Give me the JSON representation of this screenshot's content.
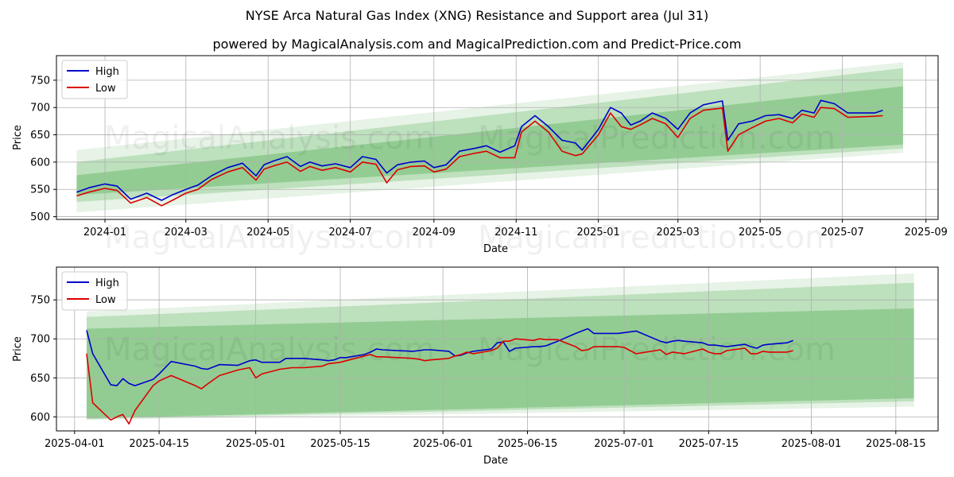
{
  "figure": {
    "title": "NYSE Arca Natural Gas Index (XNG) Resistance and Support area (Jul 31)",
    "subtitle": "powered by MagicalAnalysis.com and MagicalPrediction.com and Predict-Price.com",
    "watermarks": [
      "MagicalAnalysis.com",
      "MagicalPrediction.com"
    ]
  },
  "colors": {
    "high": "#0000cc",
    "low": "#dd0000",
    "band": "#2e9e2e",
    "grid": "#b0b0b0"
  },
  "chart_data": [
    {
      "type": "line",
      "xlabel": "Date",
      "ylabel": "Price",
      "legend": "top-left",
      "grid": true,
      "xlim": [
        "2023-11-26",
        "2025-09-10"
      ],
      "ylim": [
        495,
        795
      ],
      "xticks": [
        "2024-01",
        "2024-03",
        "2024-05",
        "2024-07",
        "2024-09",
        "2024-11",
        "2025-01",
        "2025-03",
        "2025-05",
        "2025-07",
        "2025-09"
      ],
      "xtick_dates": [
        "2024-01-01",
        "2024-03-01",
        "2024-05-01",
        "2024-07-01",
        "2024-09-01",
        "2024-11-01",
        "2025-01-01",
        "2025-03-01",
        "2025-05-01",
        "2025-07-01",
        "2025-09-01"
      ],
      "yticks": [
        500,
        550,
        600,
        650,
        700,
        750
      ],
      "bands": [
        {
          "x": [
            "2023-12-11",
            "2025-08-15"
          ],
          "upper": [
            622,
            783
          ],
          "lower": [
            508,
            617
          ]
        },
        {
          "x": [
            "2023-12-11",
            "2025-08-15"
          ],
          "upper": [
            600,
            772
          ],
          "lower": [
            527,
            625
          ]
        },
        {
          "x": [
            "2023-12-11",
            "2025-08-15"
          ],
          "upper": [
            576,
            739
          ],
          "lower": [
            540,
            632
          ]
        }
      ],
      "series": [
        {
          "name": "High",
          "color": "#0000cc",
          "x": [
            "2023-12-11",
            "2023-12-20",
            "2024-01-01",
            "2024-01-10",
            "2024-01-20",
            "2024-02-01",
            "2024-02-12",
            "2024-02-20",
            "2024-03-01",
            "2024-03-10",
            "2024-03-20",
            "2024-04-01",
            "2024-04-12",
            "2024-04-22",
            "2024-04-28",
            "2024-05-05",
            "2024-05-15",
            "2024-05-25",
            "2024-06-01",
            "2024-06-10",
            "2024-06-20",
            "2024-07-01",
            "2024-07-10",
            "2024-07-20",
            "2024-07-28",
            "2024-08-05",
            "2024-08-15",
            "2024-08-25",
            "2024-09-01",
            "2024-09-10",
            "2024-09-20",
            "2024-10-01",
            "2024-10-10",
            "2024-10-20",
            "2024-10-31",
            "2024-11-05",
            "2024-11-15",
            "2024-11-25",
            "2024-12-05",
            "2024-12-15",
            "2024-12-20",
            "2025-01-01",
            "2025-01-10",
            "2025-01-18",
            "2025-01-25",
            "2025-02-01",
            "2025-02-10",
            "2025-02-20",
            "2025-03-01",
            "2025-03-10",
            "2025-03-20",
            "2025-04-03",
            "2025-04-07",
            "2025-04-15",
            "2025-04-25",
            "2025-05-05",
            "2025-05-15",
            "2025-05-25",
            "2025-06-01",
            "2025-06-10",
            "2025-06-15",
            "2025-06-25",
            "2025-07-05",
            "2025-07-15",
            "2025-07-25",
            "2025-07-31"
          ],
          "values": [
            545,
            553,
            560,
            556,
            532,
            543,
            530,
            540,
            550,
            558,
            575,
            590,
            598,
            575,
            595,
            602,
            610,
            592,
            600,
            593,
            597,
            590,
            610,
            605,
            580,
            595,
            600,
            602,
            590,
            595,
            620,
            625,
            630,
            618,
            630,
            665,
            685,
            665,
            640,
            635,
            622,
            660,
            700,
            690,
            668,
            675,
            690,
            680,
            660,
            690,
            705,
            712,
            640,
            670,
            675,
            685,
            687,
            680,
            695,
            690,
            713,
            707,
            690,
            690,
            690,
            695
          ]
        },
        {
          "name": "Low",
          "color": "#dd0000",
          "x": [
            "2023-12-11",
            "2023-12-20",
            "2024-01-01",
            "2024-01-10",
            "2024-01-20",
            "2024-02-01",
            "2024-02-12",
            "2024-02-20",
            "2024-03-01",
            "2024-03-10",
            "2024-03-20",
            "2024-04-01",
            "2024-04-12",
            "2024-04-22",
            "2024-04-28",
            "2024-05-05",
            "2024-05-15",
            "2024-05-25",
            "2024-06-01",
            "2024-06-10",
            "2024-06-20",
            "2024-07-01",
            "2024-07-10",
            "2024-07-20",
            "2024-07-28",
            "2024-08-05",
            "2024-08-15",
            "2024-08-25",
            "2024-09-01",
            "2024-09-10",
            "2024-09-20",
            "2024-10-01",
            "2024-10-10",
            "2024-10-20",
            "2024-10-31",
            "2024-11-05",
            "2024-11-15",
            "2024-11-25",
            "2024-12-05",
            "2024-12-15",
            "2024-12-20",
            "2025-01-01",
            "2025-01-10",
            "2025-01-18",
            "2025-01-25",
            "2025-02-01",
            "2025-02-10",
            "2025-02-20",
            "2025-03-01",
            "2025-03-10",
            "2025-03-20",
            "2025-04-03",
            "2025-04-07",
            "2025-04-15",
            "2025-04-25",
            "2025-05-05",
            "2025-05-15",
            "2025-05-25",
            "2025-06-01",
            "2025-06-10",
            "2025-06-15",
            "2025-06-25",
            "2025-07-05",
            "2025-07-15",
            "2025-07-25",
            "2025-07-31"
          ],
          "values": [
            538,
            545,
            552,
            548,
            525,
            535,
            520,
            530,
            543,
            550,
            568,
            582,
            590,
            567,
            587,
            593,
            600,
            583,
            592,
            585,
            590,
            582,
            600,
            596,
            562,
            586,
            592,
            593,
            582,
            587,
            610,
            616,
            620,
            608,
            608,
            655,
            675,
            655,
            620,
            612,
            615,
            650,
            690,
            665,
            660,
            668,
            680,
            670,
            645,
            680,
            695,
            699,
            620,
            650,
            663,
            675,
            680,
            672,
            688,
            682,
            700,
            698,
            682,
            683,
            684,
            685
          ]
        }
      ]
    },
    {
      "type": "line",
      "xlabel": "Date",
      "ylabel": "Price",
      "legend": "top-left",
      "grid": true,
      "xlim": [
        "2025-03-29",
        "2025-08-22"
      ],
      "ylim": [
        582,
        792
      ],
      "xticks": [
        "2025-04-01",
        "2025-04-15",
        "2025-05-01",
        "2025-05-15",
        "2025-06-01",
        "2025-06-15",
        "2025-07-01",
        "2025-07-15",
        "2025-08-01",
        "2025-08-15"
      ],
      "yticks": [
        600,
        650,
        700,
        750
      ],
      "bands": [
        {
          "x": [
            "2025-04-03",
            "2025-08-18"
          ],
          "upper": [
            735,
            784
          ],
          "lower": [
            596,
            613
          ]
        },
        {
          "x": [
            "2025-04-03",
            "2025-08-18"
          ],
          "upper": [
            728,
            772
          ],
          "lower": [
            597,
            620
          ]
        },
        {
          "x": [
            "2025-04-03",
            "2025-08-18"
          ],
          "upper": [
            713,
            739
          ],
          "lower": [
            598,
            624
          ]
        }
      ],
      "series": [
        {
          "name": "High",
          "color": "#0000cc",
          "x": [
            "2025-04-03",
            "2025-04-04",
            "2025-04-07",
            "2025-04-08",
            "2025-04-09",
            "2025-04-10",
            "2025-04-11",
            "2025-04-14",
            "2025-04-15",
            "2025-04-17",
            "2025-04-21",
            "2025-04-22",
            "2025-04-23",
            "2025-04-25",
            "2025-04-28",
            "2025-04-30",
            "2025-05-01",
            "2025-05-02",
            "2025-05-05",
            "2025-05-06",
            "2025-05-07",
            "2025-05-08",
            "2025-05-09",
            "2025-05-12",
            "2025-05-13",
            "2025-05-14",
            "2025-05-15",
            "2025-05-16",
            "2025-05-19",
            "2025-05-20",
            "2025-05-21",
            "2025-05-22",
            "2025-05-27",
            "2025-05-28",
            "2025-05-29",
            "2025-05-30",
            "2025-06-02",
            "2025-06-03",
            "2025-06-04",
            "2025-06-05",
            "2025-06-06",
            "2025-06-09",
            "2025-06-10",
            "2025-06-11",
            "2025-06-12",
            "2025-06-13",
            "2025-06-16",
            "2025-06-17",
            "2025-06-18",
            "2025-06-20",
            "2025-06-23",
            "2025-06-24",
            "2025-06-25",
            "2025-06-26",
            "2025-06-27",
            "2025-06-30",
            "2025-07-01",
            "2025-07-02",
            "2025-07-03",
            "2025-07-07",
            "2025-07-08",
            "2025-07-09",
            "2025-07-10",
            "2025-07-11",
            "2025-07-14",
            "2025-07-15",
            "2025-07-16",
            "2025-07-17",
            "2025-07-18",
            "2025-07-21",
            "2025-07-22",
            "2025-07-23",
            "2025-07-24",
            "2025-07-25",
            "2025-07-28",
            "2025-07-29"
          ],
          "values": [
            711,
            681,
            641,
            640,
            649,
            643,
            640,
            648,
            655,
            671,
            665,
            662,
            661,
            667,
            666,
            672,
            673,
            670,
            670,
            675,
            675,
            675,
            675,
            673,
            672,
            673,
            676,
            676,
            680,
            683,
            687,
            686,
            684,
            685,
            686,
            686,
            684,
            678,
            679,
            682,
            684,
            687,
            695,
            696,
            684,
            688,
            690,
            690,
            691,
            697,
            707,
            710,
            713,
            707,
            707,
            707,
            708,
            709,
            710,
            697,
            695,
            697,
            698,
            697,
            695,
            692,
            692,
            691,
            690,
            693,
            690,
            688,
            692,
            693,
            695,
            698
          ]
        },
        {
          "name": "Low",
          "color": "#dd0000",
          "x": [
            "2025-04-03",
            "2025-04-04",
            "2025-04-07",
            "2025-04-08",
            "2025-04-09",
            "2025-04-10",
            "2025-04-11",
            "2025-04-14",
            "2025-04-15",
            "2025-04-17",
            "2025-04-21",
            "2025-04-22",
            "2025-04-23",
            "2025-04-25",
            "2025-04-28",
            "2025-04-30",
            "2025-05-01",
            "2025-05-02",
            "2025-05-05",
            "2025-05-06",
            "2025-05-07",
            "2025-05-08",
            "2025-05-09",
            "2025-05-12",
            "2025-05-13",
            "2025-05-14",
            "2025-05-15",
            "2025-05-16",
            "2025-05-19",
            "2025-05-20",
            "2025-05-21",
            "2025-05-22",
            "2025-05-27",
            "2025-05-28",
            "2025-05-29",
            "2025-05-30",
            "2025-06-02",
            "2025-06-03",
            "2025-06-04",
            "2025-06-05",
            "2025-06-06",
            "2025-06-09",
            "2025-06-10",
            "2025-06-11",
            "2025-06-12",
            "2025-06-13",
            "2025-06-16",
            "2025-06-17",
            "2025-06-18",
            "2025-06-20",
            "2025-06-23",
            "2025-06-24",
            "2025-06-25",
            "2025-06-26",
            "2025-06-27",
            "2025-06-30",
            "2025-07-01",
            "2025-07-02",
            "2025-07-03",
            "2025-07-07",
            "2025-07-08",
            "2025-07-09",
            "2025-07-10",
            "2025-07-11",
            "2025-07-14",
            "2025-07-15",
            "2025-07-16",
            "2025-07-17",
            "2025-07-18",
            "2025-07-21",
            "2025-07-22",
            "2025-07-23",
            "2025-07-24",
            "2025-07-25",
            "2025-07-28",
            "2025-07-29"
          ],
          "values": [
            681,
            618,
            596,
            600,
            603,
            591,
            608,
            640,
            646,
            653,
            640,
            636,
            642,
            653,
            660,
            663,
            650,
            655,
            661,
            662,
            663,
            663,
            663,
            665,
            668,
            669,
            670,
            672,
            678,
            680,
            677,
            677,
            675,
            674,
            672,
            673,
            675,
            678,
            680,
            683,
            681,
            685,
            688,
            697,
            697,
            700,
            698,
            700,
            699,
            699,
            690,
            685,
            686,
            690,
            690,
            690,
            689,
            685,
            681,
            686,
            680,
            683,
            682,
            681,
            687,
            683,
            681,
            681,
            685,
            688,
            681,
            681,
            684,
            683,
            683,
            685
          ]
        }
      ]
    }
  ]
}
